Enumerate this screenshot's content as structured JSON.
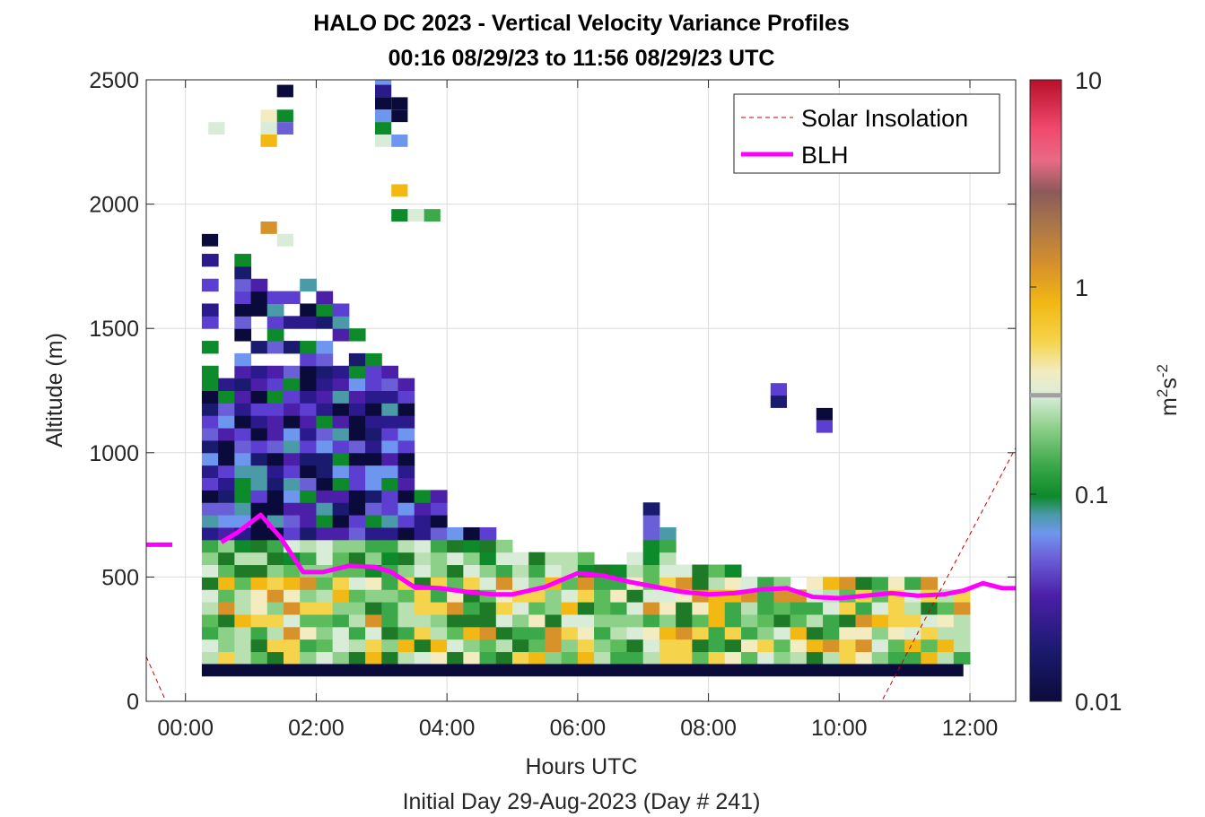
{
  "chart_data": {
    "type": "heatmap",
    "title": "HALO DC 2023 - Vertical Velocity Variance Profiles",
    "subtitle": "00:16 08/29/23 to 11:56 08/29/23  UTC",
    "xlabel": "Hours UTC",
    "xlabel2": "Initial Day 29-Aug-2023 (Day # 241)",
    "ylabel": "Altitude (m)",
    "xlim": [
      -0.6,
      12.7
    ],
    "ylim": [
      0,
      2500
    ],
    "xticks": [
      0,
      2,
      4,
      6,
      8,
      10,
      12
    ],
    "xtick_labels": [
      "00:00",
      "02:00",
      "04:00",
      "06:00",
      "08:00",
      "10:00",
      "12:00"
    ],
    "yticks": [
      0,
      500,
      1000,
      1500,
      2000,
      2500
    ],
    "ytick_labels": [
      "0",
      "500",
      "1000",
      "1500",
      "2000",
      "2500"
    ],
    "grid": true,
    "legend_position": "top-right",
    "legend": [
      {
        "label": "Solar Insolation",
        "color": "#cc0000",
        "style": "dashed"
      },
      {
        "label": "BLH",
        "color": "#ff00ff",
        "style": "solid"
      }
    ],
    "colorbar": {
      "scale": "log",
      "min": 0.01,
      "max": 10,
      "tick_labels": [
        "10",
        "1",
        "0.1",
        "0.01"
      ],
      "tick_values": [
        10,
        1,
        0.1,
        0.01
      ],
      "label_base": "m",
      "label_exp1": "2",
      "label_mid": "s",
      "label_exp2": "-2",
      "marker_value": 0.3
    },
    "series": [
      {
        "name": "BLH",
        "x": [
          0.55,
          0.8,
          1.15,
          1.45,
          1.8,
          2.1,
          2.5,
          2.9,
          3.15,
          3.5,
          3.9,
          4.3,
          4.7,
          5.0,
          5.5,
          6.0,
          6.4,
          6.8,
          7.2,
          7.6,
          8.0,
          8.4,
          8.8,
          9.2,
          9.6,
          10.0,
          10.4,
          10.8,
          11.2,
          11.6,
          11.9,
          12.2,
          12.5,
          12.7
        ],
        "y": [
          640,
          680,
          750,
          660,
          520,
          520,
          545,
          540,
          520,
          460,
          455,
          440,
          430,
          430,
          460,
          515,
          505,
          480,
          460,
          440,
          430,
          435,
          450,
          455,
          420,
          415,
          425,
          435,
          425,
          430,
          445,
          475,
          455,
          455
        ]
      },
      {
        "name": "BLH-early",
        "x": [
          -0.6,
          -0.2
        ],
        "y": [
          630,
          630
        ]
      },
      {
        "name": "Solar Insolation",
        "x": [
          -0.6,
          -0.3,
          10.65,
          12.7
        ],
        "y": [
          180,
          0,
          0,
          1020
        ]
      }
    ]
  }
}
